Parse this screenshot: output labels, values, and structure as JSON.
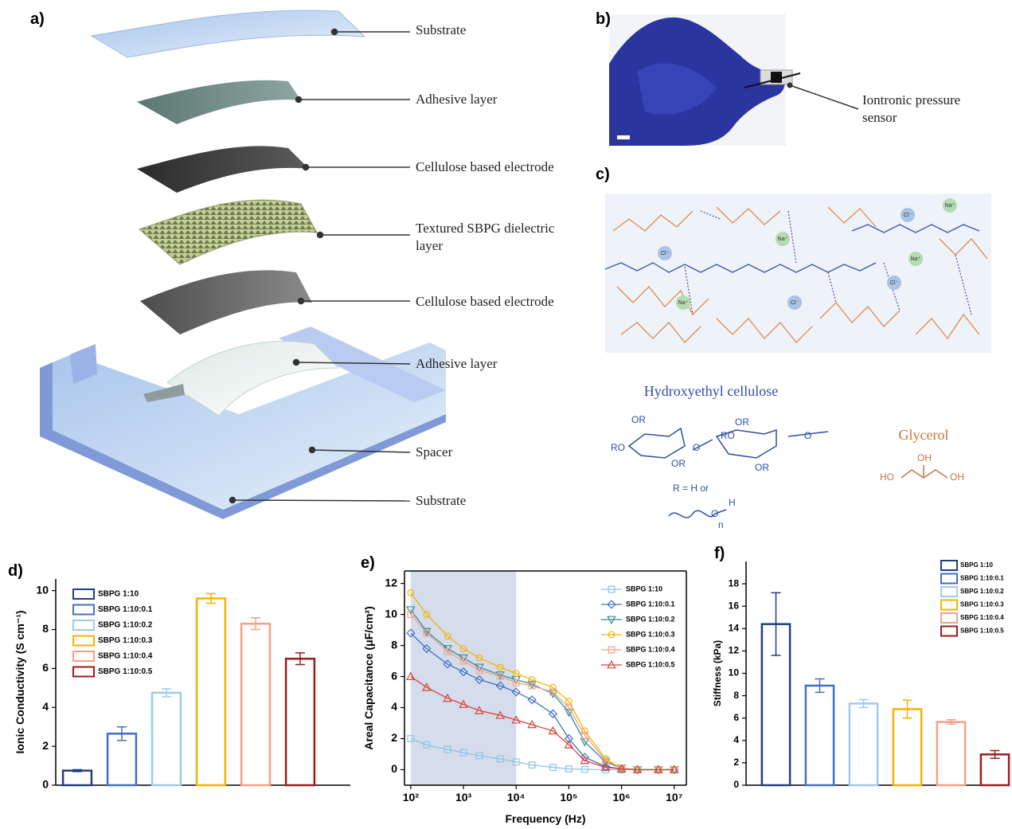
{
  "panel_labels": [
    "a)",
    "b)",
    "c)"
  ],
  "figure_a": {
    "layers": [
      "Substrate",
      "Adhesive layer",
      "Cellulose based electrode",
      "Textured SBPG dielectric layer",
      "Cellulose based electrode",
      "Adhesive layer",
      "Spacer",
      "Substrate"
    ]
  },
  "figure_b": {
    "label": "Iontronic pressure sensor"
  },
  "figure_c": {
    "ions": [
      "Na⁺",
      "Cl⁻",
      "Na⁺",
      "Na⁺",
      "Cl⁻",
      "Na⁺",
      "Cl⁻",
      "Cl⁻"
    ],
    "hec_title": "Hydroxyethyl cellulose",
    "hec_atoms": [
      "OR",
      "OR",
      "RO",
      "O",
      "RO",
      "O",
      "OR",
      "OR"
    ],
    "r_def": "R = H or",
    "unit_atoms": [
      "O",
      "H",
      "n"
    ],
    "glycerol_title": "Glycerol",
    "glycerol_atoms": [
      "HO",
      "OH",
      "OH"
    ]
  },
  "chart_data": [
    {
      "type": "bar",
      "panel": "d)",
      "ylabel": "Ionic Conductivity (S cm⁻¹)",
      "ylim": [
        0,
        10.6
      ],
      "yticks": [
        0,
        2,
        4,
        6,
        8,
        10
      ],
      "legend": "top-left",
      "series": [
        {
          "name": "SBPG 1:10",
          "color": "#1f3f7f",
          "values": [
            0.75
          ],
          "errors": [
            0.05
          ]
        },
        {
          "name": "SBPG 1:10:0.1",
          "color": "#3f71c2",
          "values": [
            2.65
          ],
          "errors": [
            0.35
          ]
        },
        {
          "name": "SBPG 1:10:0.2",
          "color": "#9fcbe9",
          "values": [
            4.75
          ],
          "errors": [
            0.2
          ]
        },
        {
          "name": "SBPG 1:10:0.3",
          "color": "#f4b400",
          "values": [
            9.6
          ],
          "errors": [
            0.25
          ]
        },
        {
          "name": "SBPG 1:10:0.4",
          "color": "#f3a185",
          "values": [
            8.3
          ],
          "errors": [
            0.3
          ]
        },
        {
          "name": "SBPG 1:10:0.5",
          "color": "#9e1b1b",
          "values": [
            6.5
          ],
          "errors": [
            0.3
          ]
        }
      ]
    },
    {
      "type": "line",
      "panel": "e)",
      "xlabel": "Frequency (Hz)",
      "ylabel": "Areal Capacitance (μF/cm²)",
      "xscale": "log",
      "xlim": [
        76,
        17000000
      ],
      "xticks": [
        {
          "value": 100,
          "label": "10²"
        },
        {
          "value": 1000,
          "label": "10³"
        },
        {
          "value": 10000,
          "label": "10⁴"
        },
        {
          "value": 100000,
          "label": "10⁵"
        },
        {
          "value": 1000000,
          "label": "10⁶"
        },
        {
          "value": 10000000,
          "label": "10⁷"
        }
      ],
      "ylim": [
        -1,
        12.8
      ],
      "yticks": [
        0,
        2,
        4,
        6,
        8,
        10,
        12
      ],
      "shade": [
        100,
        10000
      ],
      "shade_color": "#d5dcec",
      "legend": "top-right",
      "x": [
        100,
        200,
        500,
        1000,
        2000,
        5000,
        10000,
        20000,
        50000,
        100000,
        200000,
        500000,
        1000000,
        2000000,
        5000000,
        10000000
      ],
      "series": [
        {
          "name": "SBPG 1:10",
          "color": "#8fc3e6",
          "marker": "square",
          "values": [
            2.0,
            1.6,
            1.3,
            1.1,
            0.9,
            0.7,
            0.5,
            0.3,
            0.15,
            0.05,
            0.02,
            0,
            0,
            0,
            0,
            0
          ]
        },
        {
          "name": "SBPG 1:10:0.1",
          "color": "#3f71c2",
          "marker": "diamond",
          "values": [
            8.8,
            7.8,
            6.8,
            6.3,
            5.8,
            5.4,
            5.0,
            4.5,
            3.6,
            2.0,
            0.8,
            0.2,
            0.05,
            0,
            0,
            0
          ]
        },
        {
          "name": "SBPG 1:10:0.2",
          "color": "#2a8f9e",
          "marker": "triangle-down",
          "values": [
            10.3,
            8.9,
            7.8,
            7.2,
            6.6,
            6.1,
            5.8,
            5.5,
            4.9,
            3.7,
            1.8,
            0.5,
            0.1,
            0,
            0,
            0
          ]
        },
        {
          "name": "SBPG 1:10:0.3",
          "color": "#f4b400",
          "marker": "circle",
          "values": [
            11.4,
            10.0,
            8.6,
            7.8,
            7.2,
            6.6,
            6.2,
            5.8,
            5.3,
            4.4,
            2.5,
            0.7,
            0.1,
            0,
            0,
            0
          ]
        },
        {
          "name": "SBPG 1:10:0.4",
          "color": "#f3a185",
          "marker": "square",
          "values": [
            10.0,
            8.8,
            7.6,
            7.0,
            6.4,
            6.0,
            5.6,
            5.4,
            5.0,
            4.0,
            2.2,
            0.6,
            0.1,
            0,
            0,
            0
          ]
        },
        {
          "name": "SBPG 1:10:0.5",
          "color": "#d9443a",
          "marker": "triangle-up",
          "values": [
            6.0,
            5.3,
            4.6,
            4.2,
            3.8,
            3.5,
            3.2,
            2.9,
            2.5,
            1.6,
            0.6,
            0.15,
            0.05,
            0,
            0,
            0
          ]
        }
      ]
    },
    {
      "type": "bar",
      "panel": "f)",
      "ylabel": "Stiffness (kPa)",
      "ylim": [
        0,
        20
      ],
      "yticks": [
        0,
        2,
        4,
        6,
        8,
        10,
        12,
        14,
        16,
        18
      ],
      "legend": "top-right",
      "series": [
        {
          "name": "SBPG 1:10",
          "color": "#1f3f7f",
          "values": [
            14.4
          ],
          "errors": [
            2.8
          ]
        },
        {
          "name": "SBPG 1:10:0.1",
          "color": "#3f71c2",
          "values": [
            8.9
          ],
          "errors": [
            0.6
          ]
        },
        {
          "name": "SBPG 1:10:0.2",
          "color": "#9fcbe9",
          "values": [
            7.3
          ],
          "errors": [
            0.35
          ]
        },
        {
          "name": "SBPG 1:10:0.3",
          "color": "#f4b400",
          "values": [
            6.8
          ],
          "errors": [
            0.8
          ]
        },
        {
          "name": "SBPG 1:10:0.4",
          "color": "#f3a185",
          "values": [
            5.65
          ],
          "errors": [
            0.2
          ]
        },
        {
          "name": "SBPG 1:10:0.5",
          "color": "#9e1b1b",
          "values": [
            2.75
          ],
          "errors": [
            0.35
          ]
        }
      ]
    }
  ]
}
